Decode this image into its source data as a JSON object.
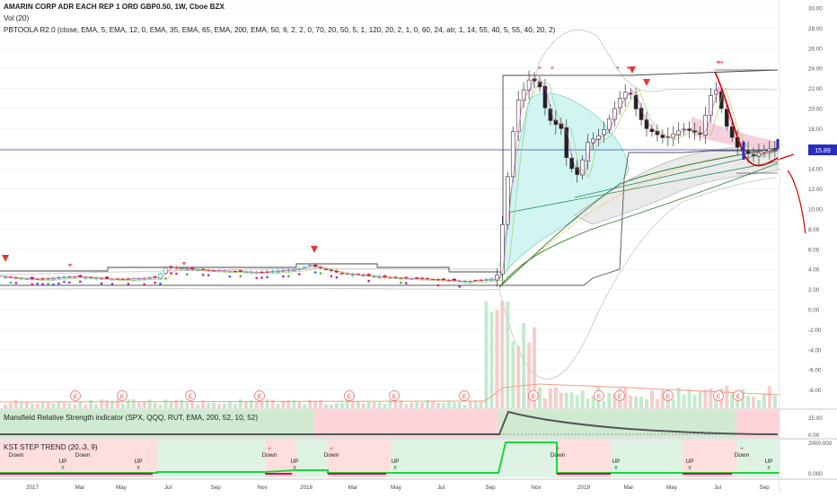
{
  "header": {
    "title": "AMARIN CORP ADR EACH REP 1 ORD GBP0.50, 1W, Cboe BZX",
    "volume_label": "Vol (20)",
    "indicator_label": "PBTOOLA R2.0 (close, EMA, 5, EMA, 12, 0, EMA, 35, EMA, 65, EMA, 200, EMA, 50, 6, 2, 2, 0, 70, 20, 50, 5, 1, 120, 20, 2, 1, 0, 60, 24, atr, 1, 14, 55, 40, 5, 55, 40, 20, 2)"
  },
  "panes": {
    "mansfield_title": "Mansfield Relative Strength indicator (SPX, QQQ, RUT, EMA, 200, 52, 10, 52)",
    "kst_title": "KST STEP TREND (20, 3, 9)"
  },
  "last_price": "15.89",
  "earnings_marker": "E",
  "colors": {
    "up": "#26a69a",
    "down": "#ef5350",
    "line": "#131722",
    "price_badge": "#2a2ebc",
    "bull_zone": "#c8e6c9",
    "bear_zone": "#ffcdd2",
    "kst": "#1cd63f",
    "kst_bear": "#e0004a"
  },
  "chart_data": [
    {
      "type": "candlestick",
      "title": "AMARIN CORP ADR EACH REP 1 ORD GBP0.50, 1W, Cboe BZX",
      "ylim": [
        -9.8,
        31.0
      ],
      "y_ticks": [
        "30.00",
        "28.00",
        "26.00",
        "24.00",
        "22.00",
        "20.00",
        "18.00",
        "16.00",
        "14.00",
        "12.00",
        "10.00",
        "8.00",
        "6.00",
        "4.00",
        "2.00",
        "0.00",
        "-2.00",
        "-4.00",
        "-6.00",
        "-8.00"
      ],
      "x_ticks": [
        "2017",
        "Mar",
        "May",
        "Jul",
        "Sep",
        "Nov",
        "2018",
        "Mar",
        "May",
        "Jul",
        "Sep",
        "Nov",
        "2019",
        "Mar",
        "May",
        "Jul",
        "Sep"
      ],
      "close_approx": [
        {
          "date": "2017-01",
          "close": 3.3
        },
        {
          "date": "2017-03",
          "close": 3.2
        },
        {
          "date": "2017-05",
          "close": 3.2
        },
        {
          "date": "2017-06",
          "close": 3.3
        },
        {
          "date": "2017-07",
          "close": 4.2
        },
        {
          "date": "2017-09",
          "close": 3.8
        },
        {
          "date": "2017-11",
          "close": 3.6
        },
        {
          "date": "2017-12",
          "close": 3.9
        },
        {
          "date": "2018-02",
          "close": 4.3
        },
        {
          "date": "2018-04",
          "close": 3.5
        },
        {
          "date": "2018-06",
          "close": 3.1
        },
        {
          "date": "2018-07",
          "close": 2.8
        },
        {
          "date": "2018-09",
          "close": 3.0
        },
        {
          "date": "2018-09-28",
          "close": 12.5
        },
        {
          "date": "2018-10",
          "close": 20.5
        },
        {
          "date": "2018-11",
          "close": 19.0
        },
        {
          "date": "2018-12",
          "close": 13.5
        },
        {
          "date": "2019-01",
          "close": 18.5
        },
        {
          "date": "2019-03",
          "close": 21.0
        },
        {
          "date": "2019-04",
          "close": 18.0
        },
        {
          "date": "2019-05",
          "close": 18.5
        },
        {
          "date": "2019-06",
          "close": 17.5
        },
        {
          "date": "2019-07",
          "close": 22.5
        },
        {
          "date": "2019-08",
          "close": 15.0
        },
        {
          "date": "2019-09",
          "close": 16.5
        },
        {
          "date": "2019-10",
          "close": 15.89
        }
      ],
      "last_value": 15.89
    },
    {
      "type": "area",
      "title": "Mansfield Relative Strength indicator (SPX, QQQ, RUT, EMA, 200, 52, 10, 52)",
      "y_ticks": [
        "25.00",
        "0.00"
      ]
    },
    {
      "type": "step",
      "title": "KST STEP TREND (20, 3, 9)",
      "y_ticks": [
        "2000.000",
        "0.000"
      ],
      "annotations": [
        "Down",
        "UP"
      ]
    }
  ]
}
